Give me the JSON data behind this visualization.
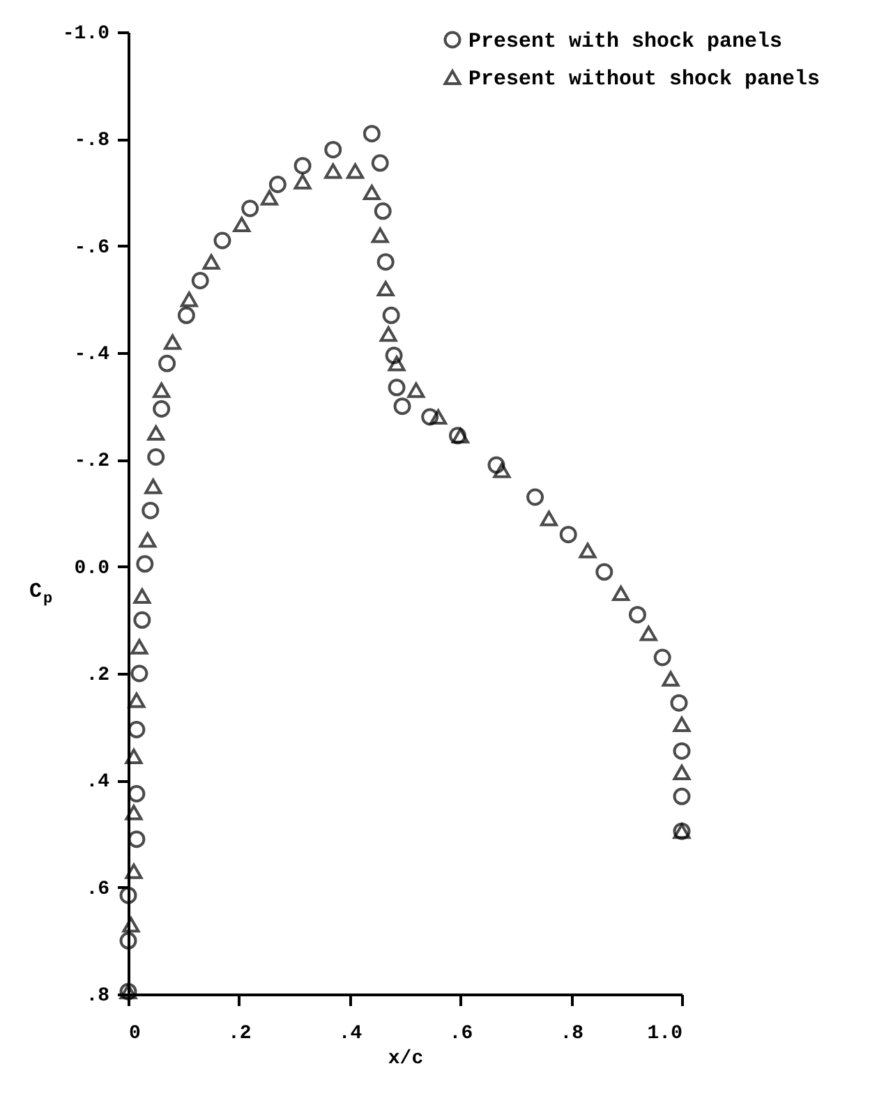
{
  "chart_data": {
    "type": "scatter",
    "xlabel": "x/c",
    "ylabel": "C$_{p}$",
    "xlim": [
      0,
      1.0
    ],
    "xticks": [
      {
        "value": 0,
        "label": "0"
      },
      {
        "value": 0.2,
        "label": ".2"
      },
      {
        "value": 0.4,
        "label": ".4"
      },
      {
        "value": 0.6,
        "label": ".6"
      },
      {
        "value": 0.8,
        "label": ".8"
      },
      {
        "value": 1.0,
        "label": "1.0"
      }
    ],
    "ylim": [
      0.8,
      -1.0
    ],
    "yticks": [
      {
        "value": -1.0,
        "label": "-1.0"
      },
      {
        "value": -0.8,
        "label": "-.8"
      },
      {
        "value": -0.6,
        "label": "-.6"
      },
      {
        "value": -0.4,
        "label": "-.4"
      },
      {
        "value": -0.2,
        "label": "-.2"
      },
      {
        "value": 0,
        "label": "0.0"
      },
      {
        "value": 0.2,
        "label": ".2"
      },
      {
        "value": 0.4,
        "label": ".4"
      },
      {
        "value": 0.6,
        "label": ".6"
      },
      {
        "value": 0.8,
        "label": ".8"
      }
    ],
    "grid": false,
    "legend": "top right",
    "series": [
      {
        "name": "Present with shock panels",
        "color": "#000000",
        "marker": "circle",
        "x": [
          0,
          0,
          0,
          0.015,
          0.015,
          0.015,
          0.02,
          0.025,
          0.03,
          0.04,
          0.05,
          0.06,
          0.07,
          0.105,
          0.13,
          0.17,
          0.22,
          0.27,
          0.315,
          0.37,
          0.44,
          0.455,
          0.46,
          0.465,
          0.475,
          0.48,
          0.485,
          0.495,
          0.545,
          0.595,
          0.665,
          0.735,
          0.795,
          0.86,
          0.92,
          0.965,
          0.995,
          1.0,
          1.0,
          1.0
        ],
        "values": [
          0.795,
          0.7,
          0.615,
          0.51,
          0.425,
          0.305,
          0.2,
          0.1,
          -0.005,
          -0.105,
          -0.205,
          -0.295,
          -0.38,
          -0.47,
          -0.535,
          -0.61,
          -0.67,
          -0.715,
          -0.75,
          -0.78,
          -0.81,
          -0.755,
          -0.665,
          -0.57,
          -0.47,
          -0.395,
          -0.335,
          -0.3,
          -0.28,
          -0.245,
          -0.19,
          -0.13,
          -0.06,
          0.01,
          0.09,
          0.17,
          0.255,
          0.345,
          0.43,
          0.495
        ]
      },
      {
        "name": "Present without shock panels",
        "color": "#000000",
        "marker": "triangle",
        "x": [
          0,
          0.005,
          0.01,
          0.01,
          0.01,
          0.015,
          0.02,
          0.025,
          0.035,
          0.045,
          0.05,
          0.06,
          0.08,
          0.11,
          0.15,
          0.205,
          0.255,
          0.315,
          0.37,
          0.41,
          0.44,
          0.455,
          0.465,
          0.47,
          0.485,
          0.52,
          0.56,
          0.6,
          0.675,
          0.76,
          0.83,
          0.89,
          0.94,
          0.98,
          1.0,
          1.0,
          1.0
        ],
        "values": [
          0.795,
          0.67,
          0.57,
          0.46,
          0.355,
          0.25,
          0.15,
          0.055,
          -0.05,
          -0.15,
          -0.25,
          -0.33,
          -0.42,
          -0.5,
          -0.57,
          -0.64,
          -0.69,
          -0.72,
          -0.74,
          -0.74,
          -0.7,
          -0.62,
          -0.52,
          -0.435,
          -0.38,
          -0.33,
          -0.28,
          -0.245,
          -0.18,
          -0.09,
          -0.03,
          0.05,
          0.125,
          0.21,
          0.295,
          0.385,
          0.495
        ]
      }
    ]
  }
}
